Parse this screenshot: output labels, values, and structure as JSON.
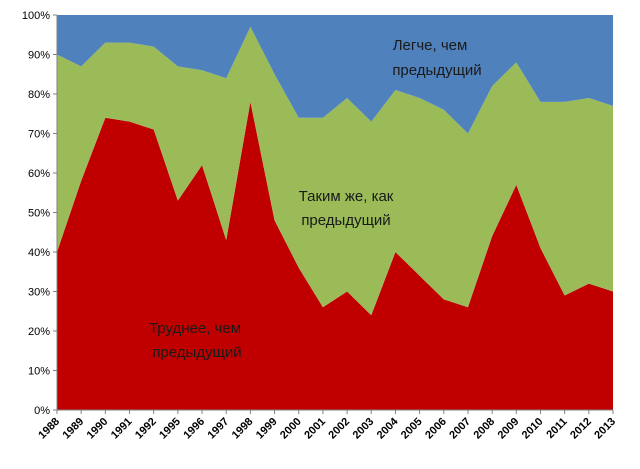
{
  "chart_data": {
    "type": "area",
    "stacked": true,
    "ylim": [
      0,
      100
    ],
    "yticks": [
      "0%",
      "10%",
      "20%",
      "30%",
      "40%",
      "50%",
      "60%",
      "70%",
      "80%",
      "90%",
      "100%"
    ],
    "x": [
      "1988",
      "1989",
      "1990",
      "1991",
      "1992",
      "1995",
      "1996",
      "1997",
      "1998",
      "1999",
      "2000",
      "2001",
      "2002",
      "2003",
      "2004",
      "2005",
      "2006",
      "2007",
      "2008",
      "2009",
      "2010",
      "2011",
      "2012",
      "2013"
    ],
    "series": [
      {
        "key": "harder",
        "color": "#c00000",
        "values": [
          40,
          58,
          74,
          73,
          71,
          53,
          62,
          43,
          78,
          48,
          36,
          26,
          30,
          24,
          40,
          34,
          28,
          26,
          44,
          57,
          41,
          29,
          32,
          30
        ]
      },
      {
        "key": "same",
        "color": "#9bbb59",
        "values": [
          50,
          29,
          19,
          20,
          21,
          34,
          24,
          41,
          19,
          37,
          38,
          48,
          49,
          49,
          41,
          45,
          48,
          44,
          38,
          31,
          37,
          49,
          47,
          47
        ]
      },
      {
        "key": "easier",
        "color": "#4f81bd",
        "values": [
          10,
          13,
          7,
          7,
          8,
          13,
          14,
          16,
          3,
          15,
          26,
          26,
          21,
          27,
          19,
          21,
          24,
          30,
          18,
          12,
          22,
          22,
          21,
          23
        ]
      }
    ],
    "annotations": [
      {
        "series": "easier",
        "lines": [
          "Легче, чем",
          "предыдущий"
        ]
      },
      {
        "series": "same",
        "lines": [
          "Таким  же, как",
          "предыдущий"
        ]
      },
      {
        "series": "harder",
        "lines": [
          "Труднее, чем",
          "предыдущий"
        ]
      }
    ],
    "grid": false,
    "legend": "none"
  }
}
